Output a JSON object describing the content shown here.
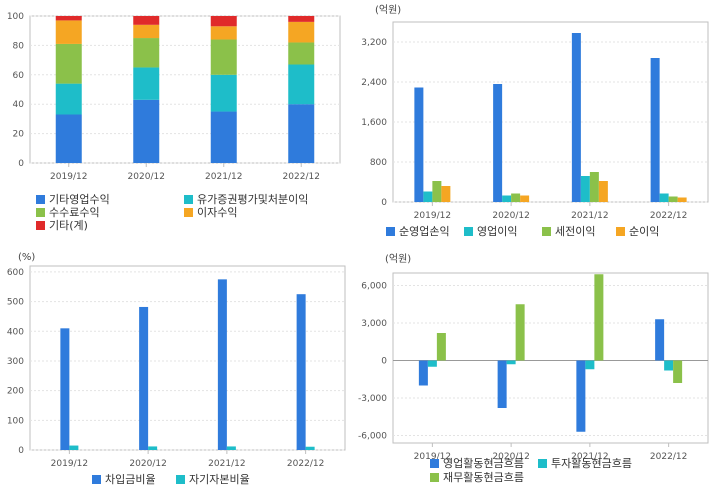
{
  "chart_data": [
    {
      "type": "bar",
      "stacked": true,
      "categories": [
        "2019/12",
        "2020/12",
        "2021/12",
        "2022/12"
      ],
      "ylim": [
        0,
        100
      ],
      "yticks": [
        "0",
        "20",
        "40",
        "60",
        "80",
        "100"
      ],
      "unit": "",
      "series": [
        {
          "name": "기타영업수익",
          "color": "#2f7bdc",
          "values": [
            33,
            43,
            35,
            40
          ]
        },
        {
          "name": "유가증권평가및처분이익",
          "color": "#1ebdc9",
          "values": [
            21,
            22,
            25,
            27
          ]
        },
        {
          "name": "수수료수익",
          "color": "#8bc14a",
          "values": [
            27,
            20,
            24,
            15
          ]
        },
        {
          "name": "이자수익",
          "color": "#f5a623",
          "values": [
            16,
            9,
            9,
            14
          ]
        },
        {
          "name": "기타(계)",
          "color": "#e02a2a",
          "values": [
            3,
            6,
            7,
            4
          ]
        }
      ],
      "legend_position": "bottom",
      "grid": true
    },
    {
      "type": "bar",
      "categories": [
        "2019/12",
        "2020/12",
        "2021/12",
        "2022/12"
      ],
      "ylim": [
        0,
        3600
      ],
      "yticks": [
        "0",
        "800",
        "1,600",
        "2,400",
        "3,200"
      ],
      "unit": "(억원)",
      "series": [
        {
          "name": "순영업손익",
          "color": "#2f7bdc",
          "values": [
            2290,
            2360,
            3380,
            2880
          ]
        },
        {
          "name": "영업이익",
          "color": "#1ebdc9",
          "values": [
            210,
            130,
            520,
            170
          ]
        },
        {
          "name": "세전이익",
          "color": "#8bc14a",
          "values": [
            420,
            170,
            600,
            110
          ]
        },
        {
          "name": "순이익",
          "color": "#f5a623",
          "values": [
            320,
            130,
            420,
            90
          ]
        }
      ],
      "legend_position": "bottom",
      "grid": true
    },
    {
      "type": "bar",
      "categories": [
        "2019/12",
        "2020/12",
        "2021/12",
        "2022/12"
      ],
      "ylim": [
        0,
        620
      ],
      "yticks": [
        "0",
        "100",
        "200",
        "300",
        "400",
        "500",
        "600"
      ],
      "unit": "(%)",
      "series": [
        {
          "name": "차입금비율",
          "color": "#2f7bdc",
          "values": [
            410,
            482,
            575,
            525
          ]
        },
        {
          "name": "자기자본비율",
          "color": "#1ebdc9",
          "values": [
            15,
            12,
            12,
            11
          ]
        }
      ],
      "legend_position": "bottom",
      "grid": true
    },
    {
      "type": "bar",
      "categories": [
        "2019/12",
        "2020/12",
        "2021/12",
        "2022/12"
      ],
      "ylim": [
        -6600,
        7000
      ],
      "yticks": [
        "-6,000",
        "-3,000",
        "0",
        "3,000",
        "6,000"
      ],
      "ytick_values": [
        -6000,
        -3000,
        0,
        3000,
        6000
      ],
      "unit": "(억원)",
      "series": [
        {
          "name": "영업활동현금흐름",
          "color": "#2f7bdc",
          "values": [
            -2000,
            -3800,
            -5700,
            3300
          ]
        },
        {
          "name": "투자활동현금흐름",
          "color": "#1ebdc9",
          "values": [
            -500,
            -300,
            -700,
            -800
          ]
        },
        {
          "name": "재무활동현금흐름",
          "color": "#8bc14a",
          "values": [
            2200,
            4500,
            6900,
            -1800
          ]
        }
      ],
      "legend_position": "bottom",
      "grid": true
    }
  ]
}
